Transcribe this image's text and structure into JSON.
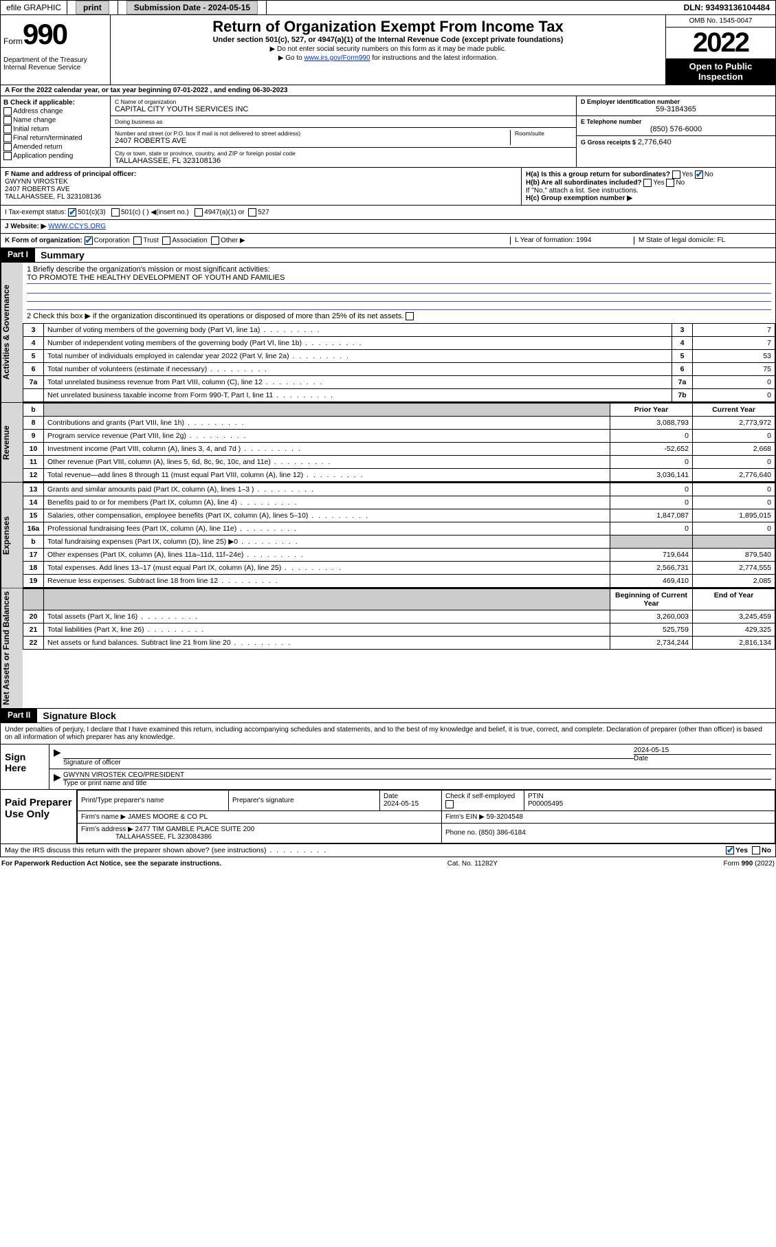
{
  "topbar": {
    "efile": "efile GRAPHIC",
    "print": "print",
    "subdate_lbl": "Submission Date - 2024-05-15",
    "dln": "DLN: 93493136104484"
  },
  "header": {
    "form_word": "Form",
    "form_num": "990",
    "dept": "Department of the Treasury\nInternal Revenue Service",
    "title": "Return of Organization Exempt From Income Tax",
    "sub": "Under section 501(c), 527, or 4947(a)(1) of the Internal Revenue Code (except private foundations)",
    "note1": "Do not enter social security numbers on this form as it may be made public.",
    "note2_pre": "Go to ",
    "note2_link": "www.irs.gov/Form990",
    "note2_post": " for instructions and the latest information.",
    "omb": "OMB No. 1545-0047",
    "year": "2022",
    "open": "Open to Public Inspection"
  },
  "rowA": {
    "text": "A For the 2022 calendar year, or tax year beginning 07-01-2022   , and ending 06-30-2023"
  },
  "B": {
    "hdr": "B Check if applicable:",
    "opts": [
      "Address change",
      "Name change",
      "Initial return",
      "Final return/terminated",
      "Amended return",
      "Application pending"
    ]
  },
  "C": {
    "name_lbl": "C Name of organization",
    "name": "CAPITAL CITY YOUTH SERVICES INC",
    "dba_lbl": "Doing business as",
    "dba": "",
    "addr_lbl": "Number and street (or P.O. box if mail is not delivered to street address)",
    "room_lbl": "Room/suite",
    "addr": "2407 ROBERTS AVE",
    "city_lbl": "City or town, state or province, country, and ZIP or foreign postal code",
    "city": "TALLAHASSEE, FL  323108136"
  },
  "D": {
    "lbl": "D Employer identification number",
    "val": "59-3184365"
  },
  "E": {
    "lbl": "E Telephone number",
    "val": "(850) 576-6000"
  },
  "G": {
    "lbl": "G Gross receipts $",
    "val": "2,776,640"
  },
  "F": {
    "lbl": "F Name and address of principal officer:",
    "name": "GWYNN VIROSTEK",
    "addr": "2407 ROBERTS AVE",
    "city": "TALLAHASSEE, FL  323108136"
  },
  "H": {
    "a_lbl": "H(a)  Is this a group return for subordinates?",
    "a_yes": "Yes",
    "a_no": "No",
    "b_lbl": "H(b)  Are all subordinates included?",
    "b_yes": "Yes",
    "b_no": "No",
    "b_note": "If \"No,\" attach a list. See instructions.",
    "c_lbl": "H(c)  Group exemption number ▶"
  },
  "I": {
    "lbl": "I    Tax-exempt status:",
    "o1": "501(c)(3)",
    "o2": "501(c) (   ) ◀(insert no.)",
    "o3": "4947(a)(1) or",
    "o4": "527"
  },
  "J": {
    "lbl": "J    Website: ▶",
    "val": "WWW.CCYS.ORG"
  },
  "K": {
    "lbl": "K Form of organization:",
    "o1": "Corporation",
    "o2": "Trust",
    "o3": "Association",
    "o4": "Other ▶",
    "L": "L Year of formation: 1994",
    "M": "M State of legal domicile: FL"
  },
  "partI": {
    "hdr": "Part I",
    "title": "Summary",
    "q1_lbl": "1  Briefly describe the organization's mission or most significant activities:",
    "q1_val": "TO PROMOTE THE HEALTHY DEVELOPMENT OF YOUTH AND FAMILIES",
    "q2": "2  Check this box ▶        if the organization discontinued its operations or disposed of more than 25% of its net assets.",
    "rows_gov": [
      {
        "n": "3",
        "t": "Number of voting members of the governing body (Part VI, line 1a)",
        "b": "3",
        "v": "7"
      },
      {
        "n": "4",
        "t": "Number of independent voting members of the governing body (Part VI, line 1b)",
        "b": "4",
        "v": "7"
      },
      {
        "n": "5",
        "t": "Total number of individuals employed in calendar year 2022 (Part V, line 2a)",
        "b": "5",
        "v": "53"
      },
      {
        "n": "6",
        "t": "Total number of volunteers (estimate if necessary)",
        "b": "6",
        "v": "75"
      },
      {
        "n": "7a",
        "t": "Total unrelated business revenue from Part VIII, column (C), line 12",
        "b": "7a",
        "v": "0"
      },
      {
        "n": "",
        "t": "Net unrelated business taxable income from Form 990-T, Part I, line 11",
        "b": "7b",
        "v": "0"
      }
    ],
    "rev_hdr_b": "b",
    "rev_hdr_py": "Prior Year",
    "rev_hdr_cy": "Current Year",
    "rows_rev": [
      {
        "n": "8",
        "t": "Contributions and grants (Part VIII, line 1h)",
        "py": "3,088,793",
        "cy": "2,773,972"
      },
      {
        "n": "9",
        "t": "Program service revenue (Part VIII, line 2g)",
        "py": "0",
        "cy": "0"
      },
      {
        "n": "10",
        "t": "Investment income (Part VIII, column (A), lines 3, 4, and 7d )",
        "py": "-52,652",
        "cy": "2,668"
      },
      {
        "n": "11",
        "t": "Other revenue (Part VIII, column (A), lines 5, 6d, 8c, 9c, 10c, and 11e)",
        "py": "0",
        "cy": "0"
      },
      {
        "n": "12",
        "t": "Total revenue—add lines 8 through 11 (must equal Part VIII, column (A), line 12)",
        "py": "3,036,141",
        "cy": "2,776,640"
      }
    ],
    "rows_exp": [
      {
        "n": "13",
        "t": "Grants and similar amounts paid (Part IX, column (A), lines 1–3 )",
        "py": "0",
        "cy": "0"
      },
      {
        "n": "14",
        "t": "Benefits paid to or for members (Part IX, column (A), line 4)",
        "py": "0",
        "cy": "0"
      },
      {
        "n": "15",
        "t": "Salaries, other compensation, employee benefits (Part IX, column (A), lines 5–10)",
        "py": "1,847,087",
        "cy": "1,895,015"
      },
      {
        "n": "16a",
        "t": "Professional fundraising fees (Part IX, column (A), line 11e)",
        "py": "0",
        "cy": "0"
      },
      {
        "n": "b",
        "t": "Total fundraising expenses (Part IX, column (D), line 25) ▶0",
        "py": "",
        "cy": "",
        "shade": true
      },
      {
        "n": "17",
        "t": "Other expenses (Part IX, column (A), lines 11a–11d, 11f–24e)",
        "py": "719,644",
        "cy": "879,540"
      },
      {
        "n": "18",
        "t": "Total expenses. Add lines 13–17 (must equal Part IX, column (A), line 25)",
        "py": "2,566,731",
        "cy": "2,774,555"
      },
      {
        "n": "19",
        "t": "Revenue less expenses. Subtract line 18 from line 12",
        "py": "469,410",
        "cy": "2,085"
      }
    ],
    "na_hdr_b": "Beginning of Current Year",
    "na_hdr_e": "End of Year",
    "rows_na": [
      {
        "n": "20",
        "t": "Total assets (Part X, line 16)",
        "py": "3,260,003",
        "cy": "3,245,459"
      },
      {
        "n": "21",
        "t": "Total liabilities (Part X, line 26)",
        "py": "525,759",
        "cy": "429,325"
      },
      {
        "n": "22",
        "t": "Net assets or fund balances. Subtract line 21 from line 20",
        "py": "2,734,244",
        "cy": "2,816,134"
      }
    ],
    "labels": {
      "gov": "Activities & Governance",
      "rev": "Revenue",
      "exp": "Expenses",
      "na": "Net Assets or Fund Balances"
    }
  },
  "partII": {
    "hdr": "Part II",
    "title": "Signature Block",
    "decl": "Under penalties of perjury, I declare that I have examined this return, including accompanying schedules and statements, and to the best of my knowledge and belief, it is true, correct, and complete. Declaration of preparer (other than officer) is based on all information of which preparer has any knowledge.",
    "sign_here": "Sign Here",
    "sig_officer": "Signature of officer",
    "sig_date": "2024-05-15",
    "date_lbl": "Date",
    "officer": "GWYNN VIROSTEK CEO/PRESIDENT",
    "officer_lbl": "Type or print name and title",
    "paid": "Paid Preparer Use Only",
    "pp_name_lbl": "Print/Type preparer's name",
    "pp_sig_lbl": "Preparer's signature",
    "pp_date_lbl": "Date",
    "pp_date": "2024-05-15",
    "pp_check_lbl": "Check         if self-employed",
    "pp_ptin_lbl": "PTIN",
    "pp_ptin": "P00005495",
    "firm_name_lbl": "Firm's name    ▶",
    "firm_name": "JAMES MOORE & CO PL",
    "firm_ein_lbl": "Firm's EIN ▶",
    "firm_ein": "59-3204548",
    "firm_addr_lbl": "Firm's address ▶",
    "firm_addr": "2477 TIM GAMBLE PLACE SUITE 200",
    "firm_city": "TALLAHASSEE, FL  323084386",
    "firm_phone_lbl": "Phone no.",
    "firm_phone": "(850) 386-6184",
    "may_irs": "May the IRS discuss this return with the preparer shown above? (see instructions)",
    "yes": "Yes",
    "no": "No"
  },
  "footer": {
    "l": "For Paperwork Reduction Act Notice, see the separate instructions.",
    "m": "Cat. No. 11282Y",
    "r": "Form 990 (2022)"
  }
}
